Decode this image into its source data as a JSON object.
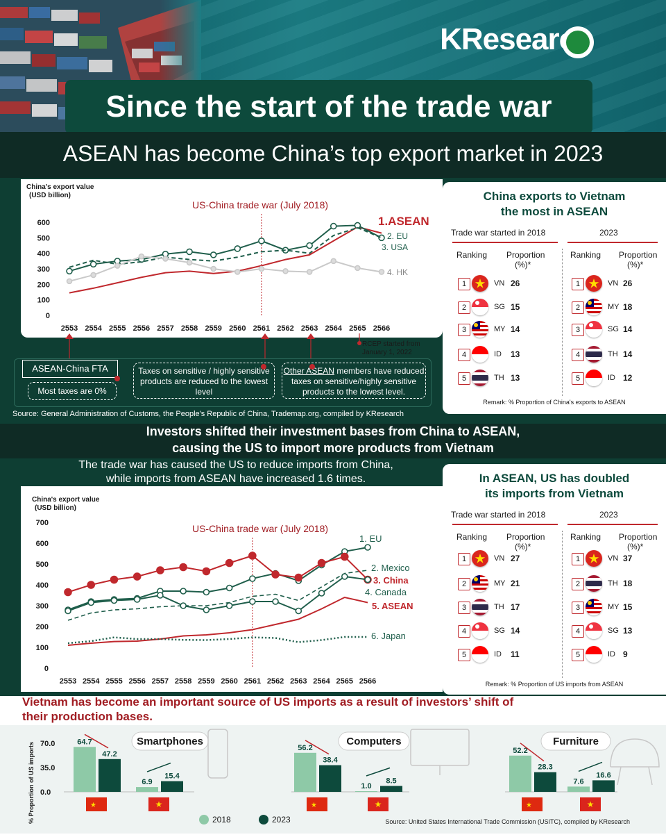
{
  "header": {
    "logo": "KResearch",
    "title": "Since the start of the trade war",
    "subtitle": "ASEAN has become China’s top export market in 2023"
  },
  "section1": {
    "chart_data": {
      "type": "line",
      "ylabel": "China's export value (USD billion)",
      "annotation": "US-China trade war (July 2018)",
      "x": [
        "2553",
        "2554",
        "2555",
        "2556",
        "2557",
        "2558",
        "2559",
        "2560",
        "2561",
        "2562",
        "2563",
        "2564",
        "2565",
        "2566"
      ],
      "ylim": [
        0,
        600
      ],
      "yticks": [
        0,
        100,
        200,
        300,
        400,
        500,
        600
      ],
      "vline_at": "2561",
      "series": [
        {
          "name": "1.ASEAN",
          "color": "#c0282d",
          "style": "solid",
          "values": [
            145,
            175,
            210,
            245,
            275,
            285,
            270,
            285,
            320,
            360,
            390,
            480,
            570,
            530
          ]
        },
        {
          "name": "2. EU",
          "color": "#1f5e4b",
          "style": "solid",
          "values": [
            285,
            330,
            350,
            360,
            395,
            410,
            390,
            430,
            480,
            420,
            450,
            575,
            580,
            500
          ]
        },
        {
          "name": "3. USA",
          "color": "#1f5e4b",
          "style": "dashed",
          "values": [
            310,
            355,
            330,
            345,
            375,
            360,
            350,
            375,
            410,
            420,
            400,
            515,
            565,
            500
          ]
        },
        {
          "name": "4. HK",
          "color": "#c9c9c9",
          "style": "solid",
          "values": [
            220,
            260,
            320,
            380,
            365,
            340,
            300,
            280,
            300,
            285,
            280,
            350,
            305,
            280
          ]
        }
      ]
    },
    "markers_note": "RCEP started from January 1, 2022",
    "fta_title": "ASEAN-China FTA",
    "fta_box": "Most taxes are 0%",
    "box2": "Taxes on sensitive / highly sensitive products are reduced to the lowest level",
    "box3_underlined": "Other ASEAN",
    "box3_rest": " members have reduced taxes on sensitive/highly sensitive products to the lowest level.",
    "source": "Source: General Administration of Customs, the People's Republic of China, Trademap.org, compiled by KResearch"
  },
  "panel1": {
    "title": "China exports to Vietnam the most in ASEAN",
    "col_left": "Trade war started in 2018",
    "col_right": "2023",
    "ranking_label": "Ranking",
    "proportion_label": "Proportion (%)*",
    "left": [
      {
        "rank": "1",
        "code": "VN",
        "value": "26"
      },
      {
        "rank": "2",
        "code": "SG",
        "value": "15"
      },
      {
        "rank": "3",
        "code": "MY",
        "value": "14"
      },
      {
        "rank": "4",
        "code": "ID",
        "value": "13"
      },
      {
        "rank": "5",
        "code": "TH",
        "value": "13"
      }
    ],
    "right": [
      {
        "rank": "1",
        "code": "VN",
        "value": "26"
      },
      {
        "rank": "2",
        "code": "MY",
        "value": "18"
      },
      {
        "rank": "3",
        "code": "SG",
        "value": "14"
      },
      {
        "rank": "4",
        "code": "TH",
        "value": "14"
      },
      {
        "rank": "5",
        "code": "ID",
        "value": "12"
      }
    ],
    "remark": "Remark: % Proportion of China's exports to ASEAN"
  },
  "section2": {
    "heading_line1": "Investors shifted their investment bases from China to ASEAN,",
    "heading_line2": "causing the US to import more products from Vietnam",
    "sub_line1": "The trade war has caused the US to reduce imports from China,",
    "sub_line2": "while imports from ASEAN have increased 1.6 times.",
    "chart_data": {
      "type": "line",
      "ylabel": "China's export value (USD billion)",
      "annotation": "US-China trade war (July 2018)",
      "x": [
        "2553",
        "2554",
        "2555",
        "2556",
        "2557",
        "2558",
        "2559",
        "2560",
        "2561",
        "2562",
        "2563",
        "2564",
        "2565",
        "2566"
      ],
      "ylim": [
        0,
        700
      ],
      "yticks": [
        0,
        100,
        200,
        300,
        400,
        500,
        600,
        700
      ],
      "vline_at": "2561",
      "series": [
        {
          "name": "1. EU",
          "color": "#1f5e4b",
          "style": "solid",
          "values": [
            280,
            320,
            330,
            335,
            370,
            370,
            365,
            385,
            430,
            455,
            420,
            495,
            560,
            580
          ]
        },
        {
          "name": "2. Mexico",
          "color": "#1f5e4b",
          "style": "dashed",
          "values": [
            230,
            265,
            280,
            285,
            295,
            300,
            300,
            315,
            345,
            355,
            325,
            390,
            455,
            470
          ]
        },
        {
          "name": "3. China",
          "color": "#c0282d",
          "style": "solid",
          "values": [
            365,
            400,
            425,
            440,
            470,
            485,
            465,
            505,
            540,
            450,
            435,
            505,
            535,
            425
          ]
        },
        {
          "name": "4. Canada",
          "color": "#1f5e4b",
          "style": "solid",
          "values": [
            275,
            315,
            325,
            330,
            350,
            300,
            280,
            300,
            320,
            320,
            275,
            360,
            440,
            425
          ]
        },
        {
          "name": "5. ASEAN",
          "color": "#c0282d",
          "style": "solid",
          "values": [
            110,
            120,
            128,
            130,
            140,
            155,
            160,
            170,
            185,
            210,
            235,
            285,
            340,
            315
          ]
        },
        {
          "name": "6. Japan",
          "color": "#1f5e4b",
          "style": "dotted",
          "values": [
            120,
            130,
            148,
            140,
            140,
            136,
            135,
            140,
            148,
            145,
            125,
            135,
            150,
            150
          ]
        }
      ]
    }
  },
  "panel2": {
    "title": "In ASEAN, US has doubled its imports from Vietnam",
    "col_left": "Trade war started in 2018",
    "col_right": "2023",
    "ranking_label": "Ranking",
    "proportion_label": "Proportion (%)*",
    "left": [
      {
        "rank": "1",
        "code": "VN",
        "value": "27"
      },
      {
        "rank": "2",
        "code": "MY",
        "value": "21"
      },
      {
        "rank": "3",
        "code": "TH",
        "value": "17"
      },
      {
        "rank": "4",
        "code": "SG",
        "value": "14"
      },
      {
        "rank": "5",
        "code": "ID",
        "value": "11"
      }
    ],
    "right": [
      {
        "rank": "1",
        "code": "VN",
        "value": "37"
      },
      {
        "rank": "2",
        "code": "TH",
        "value": "18"
      },
      {
        "rank": "3",
        "code": "MY",
        "value": "15"
      },
      {
        "rank": "4",
        "code": "SG",
        "value": "13"
      },
      {
        "rank": "5",
        "code": "ID",
        "value": "9"
      }
    ],
    "remark": "Remark: % Proportion of US imports from ASEAN"
  },
  "section3": {
    "title": "Vietnam has become an important source of US imports as a result of investors’ shift of their production bases.",
    "ylabel": "% Proportion of US imports",
    "yticks": [
      "70.0",
      "35.0",
      "0.0"
    ],
    "ylim": [
      0,
      70
    ],
    "legend": {
      "y2018": "2018",
      "y2023": "2023"
    },
    "colors": {
      "y2018": "#8ec9a7",
      "y2023": "#0d4a3c"
    },
    "products": [
      {
        "name": "Smartphones",
        "china": [
          64.7,
          47.2
        ],
        "china_labels": [
          "64.7",
          "47.2"
        ],
        "vietnam": [
          6.9,
          15.4
        ],
        "vietnam_labels": [
          "6.9",
          "15.4"
        ]
      },
      {
        "name": "Computers",
        "china": [
          56.2,
          38.4
        ],
        "china_labels": [
          "56.2",
          "38.4"
        ],
        "vietnam": [
          1.0,
          8.5
        ],
        "vietnam_labels": [
          "1.0",
          "8.5"
        ]
      },
      {
        "name": "Furniture",
        "china": [
          52.2,
          28.3
        ],
        "china_labels": [
          "52.2",
          "28.3"
        ],
        "vietnam": [
          7.6,
          16.6
        ],
        "vietnam_labels": [
          "7.6",
          "16.6"
        ]
      }
    ],
    "source": "Source: United States International Trade Commission (USITC), compiled by KResearch"
  }
}
